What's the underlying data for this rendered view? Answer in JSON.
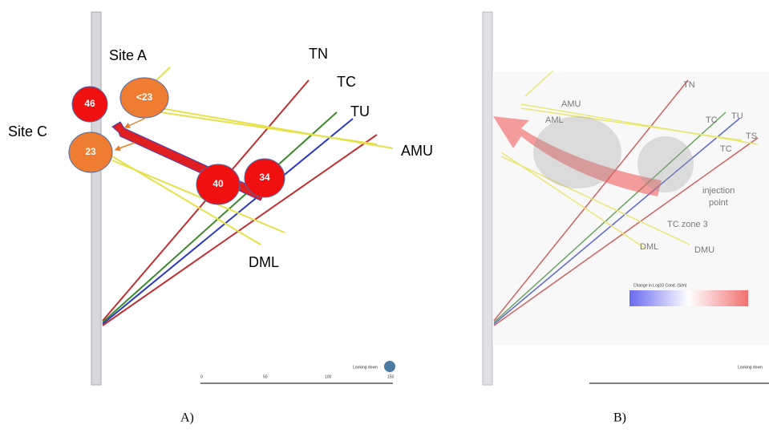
{
  "panel_a": {
    "site_labels": [
      "Site A",
      "Site C"
    ],
    "well_labels": [
      "TN",
      "TC",
      "TU",
      "AMU",
      "DML"
    ],
    "bubbles": [
      "46",
      "<23",
      "23",
      "40",
      "34"
    ],
    "scale_labels": [
      "0",
      "50",
      "100",
      "150"
    ],
    "orientation": "Looking down"
  },
  "panel_b": {
    "labels": [
      "AMU",
      "AML",
      "TN",
      "TC",
      "TU",
      "TS",
      "TC",
      "injection",
      "point",
      "TC zone 3",
      "DML",
      "DMU"
    ],
    "colorbar_title": "Change in Log10 Cond. (S/m)",
    "orientation": "Looking down"
  },
  "captions": [
    "A)",
    "B)"
  ]
}
